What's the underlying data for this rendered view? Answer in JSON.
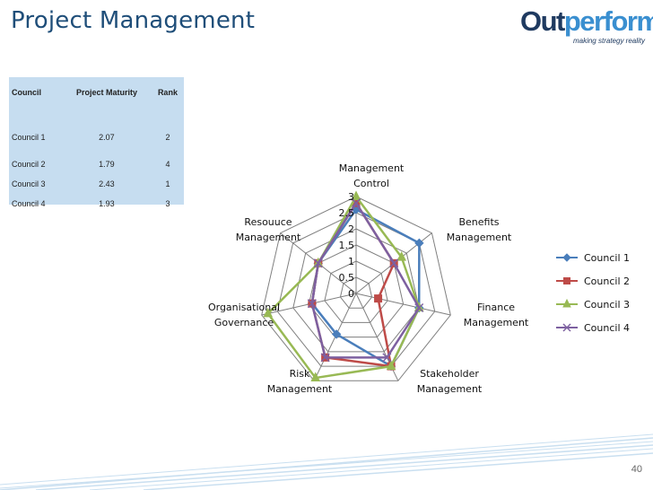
{
  "slide": {
    "title": "Project Management",
    "page_number": "40"
  },
  "logo": {
    "brand_part1": "Out",
    "brand_part2": "perform",
    "tagline": "making strategy reality"
  },
  "table": {
    "headers": [
      "Council",
      "Project Maturity",
      "Rank"
    ],
    "rows": [
      [
        "Council 1",
        "2.07",
        "2"
      ],
      [
        "Council 2",
        "1.79",
        "4"
      ],
      [
        "Council 3",
        "2.43",
        "1"
      ],
      [
        "Council 4",
        "1.93",
        "3"
      ]
    ]
  },
  "colors": {
    "title": "#1f4e79",
    "table_bg": "#c6ddf0",
    "grid": "#7f7f7f",
    "council1": "#4a7ebb",
    "council2": "#be4b48",
    "council3": "#98b954",
    "council4": "#7d60a0"
  },
  "chart_data": {
    "type": "radar",
    "axes": [
      [
        "Management",
        "Control"
      ],
      [
        "Benefits",
        "Management"
      ],
      [
        "Finance",
        "Management"
      ],
      [
        "Stakeholder",
        "Management"
      ],
      [
        "Risk",
        "Management"
      ],
      [
        "Organisational",
        "Governance"
      ],
      [
        "Resouuce",
        "Management"
      ]
    ],
    "range": [
      0,
      3
    ],
    "ticks": [
      "0",
      "0.5",
      "1",
      "1.5",
      "2",
      "2.5",
      "3"
    ],
    "grid": true,
    "legend_position": "right",
    "series": [
      {
        "name": "Council 1",
        "color": "#4a7ebb",
        "marker": "diamond",
        "values": [
          2.6,
          2.5,
          2.0,
          2.5,
          1.4,
          1.4,
          1.5
        ]
      },
      {
        "name": "Council 2",
        "color": "#be4b48",
        "marker": "square",
        "values": [
          2.8,
          1.5,
          0.7,
          2.5,
          2.2,
          1.4,
          1.5
        ]
      },
      {
        "name": "Council 3",
        "color": "#98b954",
        "marker": "triangle",
        "values": [
          3.0,
          1.8,
          2.0,
          2.5,
          2.9,
          2.8,
          1.5
        ]
      },
      {
        "name": "Council 4",
        "color": "#7d60a0",
        "marker": "x",
        "values": [
          2.8,
          1.5,
          2.0,
          2.2,
          2.2,
          1.4,
          1.5
        ]
      }
    ]
  }
}
